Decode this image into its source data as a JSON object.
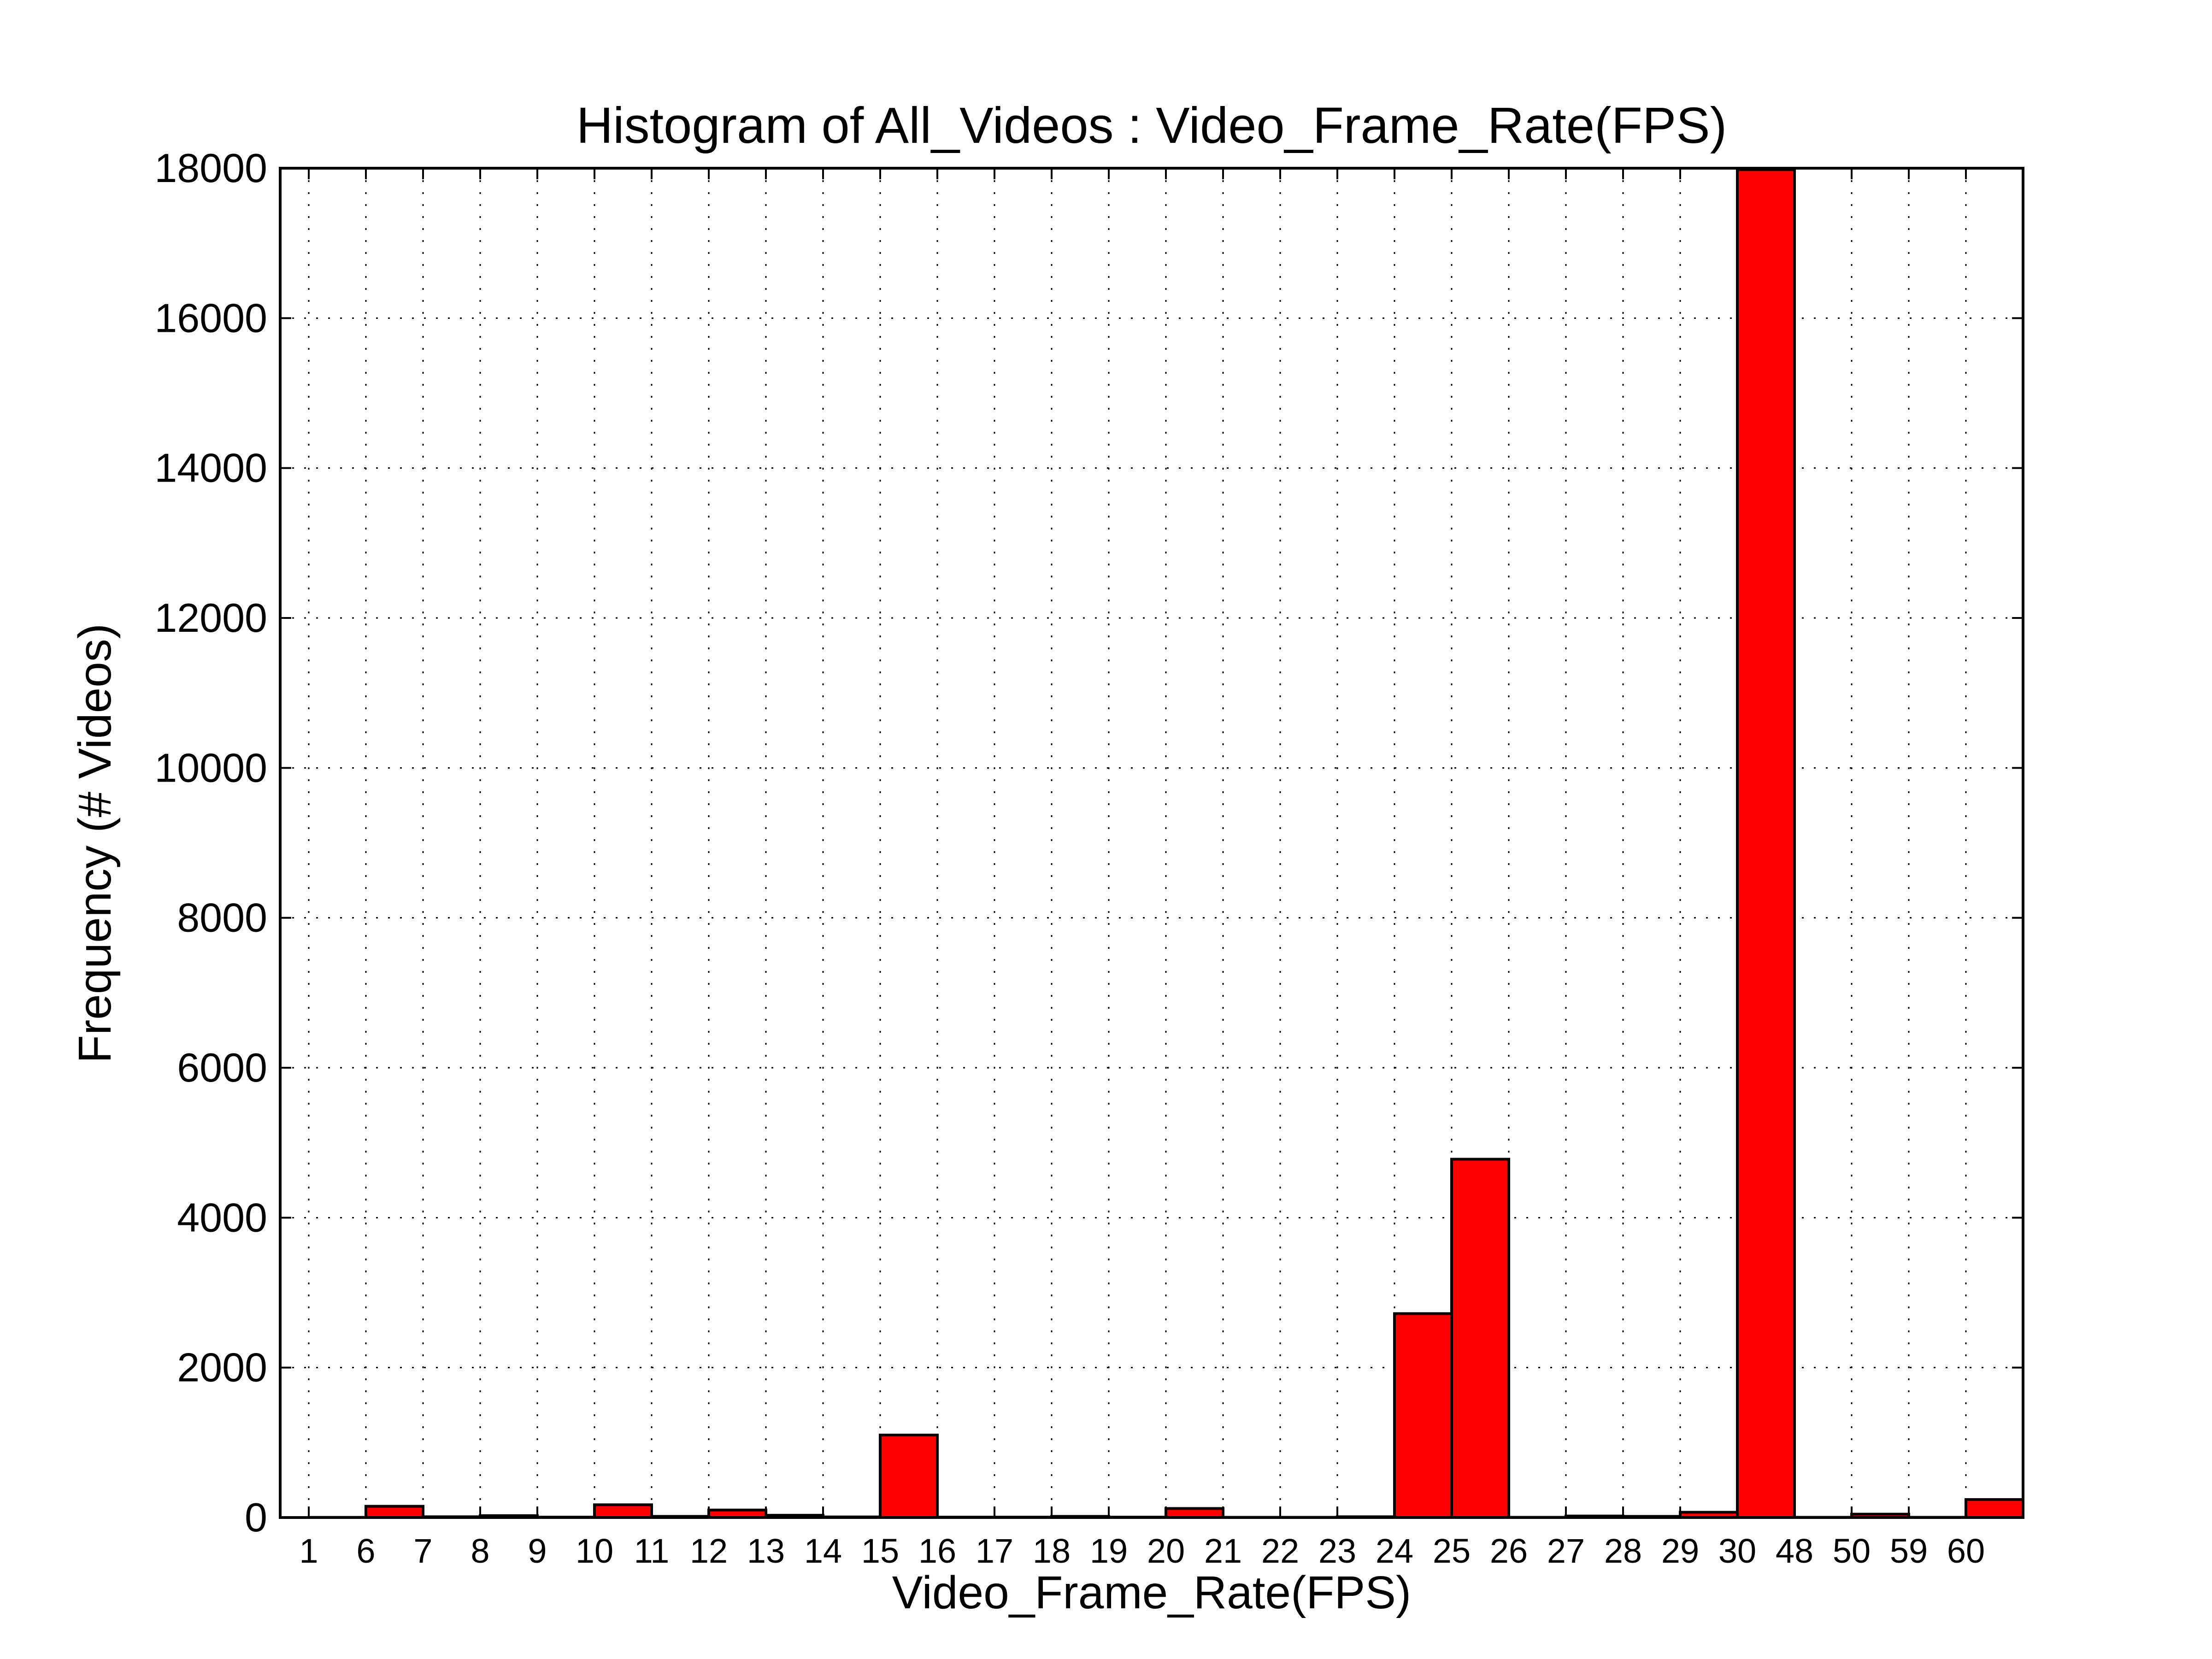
{
  "chart_data": {
    "type": "bar",
    "title": "Histogram of All_Videos : Video_Frame_Rate(FPS)",
    "xlabel": "Video_Frame_Rate(FPS)",
    "ylabel": "Frequency (# Videos)",
    "categories": [
      "1",
      "6",
      "7",
      "8",
      "9",
      "10",
      "11",
      "12",
      "13",
      "14",
      "15",
      "16",
      "17",
      "18",
      "19",
      "20",
      "21",
      "22",
      "23",
      "24",
      "25",
      "26",
      "27",
      "28",
      "29",
      "30",
      "48",
      "50",
      "59",
      "60"
    ],
    "values": [
      2,
      150,
      10,
      25,
      5,
      170,
      15,
      100,
      30,
      8,
      1100,
      5,
      5,
      15,
      5,
      120,
      3,
      3,
      10,
      2720,
      4780,
      3,
      20,
      15,
      70,
      17980,
      3,
      45,
      3,
      240
    ],
    "ylim": [
      0,
      18000
    ],
    "yticks": [
      0,
      2000,
      4000,
      6000,
      8000,
      10000,
      12000,
      14000,
      16000,
      18000
    ],
    "grid": true,
    "bar_color": "#ff0000",
    "edge_color": "#000000"
  }
}
